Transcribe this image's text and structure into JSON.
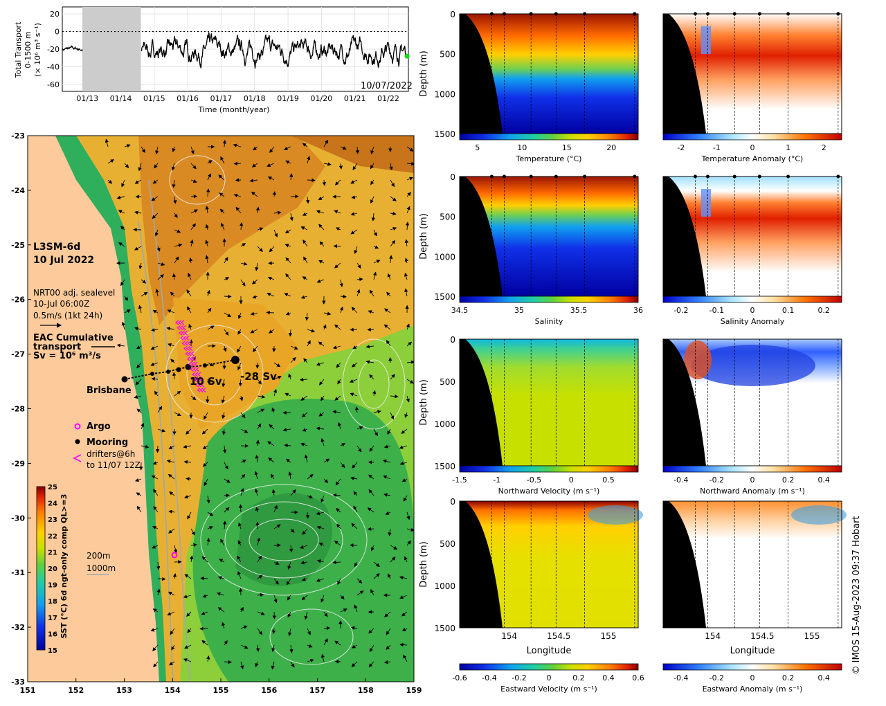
{
  "copyright": "© IMOS 15-Aug-2023 09:37 Hobart",
  "chart_data": [
    {
      "id": "transport",
      "type": "line",
      "ylabel_lines": [
        "Total Transport",
        "0-1500 m",
        "(× 10⁶ m³ s⁻¹)"
      ],
      "xlabel": "Time (month/year)",
      "date_label": "10/07/2022",
      "x_ticks": [
        "01/13",
        "01/14",
        "01/15",
        "01/16",
        "01/17",
        "01/18",
        "01/19",
        "01/20",
        "01/21",
        "01/22"
      ],
      "y_ticks": [
        "20",
        "0",
        "-20",
        "-40",
        "-60"
      ],
      "ylim": [
        -68,
        28
      ],
      "xlim": [
        2012.25,
        2022.6
      ],
      "gap": [
        2012.85,
        2014.6
      ],
      "zero_line": "dotted",
      "series": [
        {
          "segment": 1,
          "x_start": 2012.25,
          "x_end": 2012.85,
          "mean": -20,
          "amp": 4
        },
        {
          "segment": 2,
          "x_start": 2014.62,
          "x_end": 2022.52,
          "mean": -22,
          "amp": 18
        }
      ],
      "current_value": -28,
      "marker_color": "#00dd00"
    },
    {
      "id": "sst-map",
      "type": "heatmap",
      "title_lines": [
        "L3SM-6d",
        "10 Jul 2022"
      ],
      "info_lines": [
        "NRT00 adj. sealevel",
        "10-Jul 06:00Z",
        "0.5m/s (1kt 24h)"
      ],
      "transport_legend_lines": [
        "EAC Cumulative",
        "transport",
        "Sv = 10⁶ m³/s"
      ],
      "place_label": "Brisbane",
      "transport_labels": [
        "10 Sv",
        "-28 Sv"
      ],
      "legend": [
        {
          "label": "Argo",
          "symbol": "circle-open",
          "color": "#ff00ff"
        },
        {
          "label": "Mooring",
          "symbol": "dot",
          "color": "#000000"
        },
        {
          "label": "drifters@6h",
          "symbol": "chevron",
          "color": "#ff00ff"
        },
        {
          "label": "to 11/07 12Z",
          "symbol": "none",
          "color": "#000000"
        }
      ],
      "contour_legend": [
        "200m",
        "1000m"
      ],
      "xlim": [
        151,
        159
      ],
      "ylim": [
        -33,
        -23
      ],
      "x_ticks": [
        "151",
        "152",
        "153",
        "154",
        "155",
        "156",
        "157",
        "158",
        "159"
      ],
      "y_ticks": [
        "-23",
        "-24",
        "-25",
        "-26",
        "-27",
        "-28",
        "-29",
        "-30",
        "-31",
        "-32",
        "-33"
      ],
      "colorbar_label": "SST (°C) 6d ngt-only comp QL>=3",
      "colorbar_ticks": [
        "25",
        "24",
        "23",
        "22",
        "21",
        "20",
        "19",
        "18",
        "17",
        "16",
        "15"
      ],
      "colorbar_range": [
        15,
        25
      ]
    },
    {
      "id": "sections",
      "type": "heatmap",
      "ylabel": "Depth (m)",
      "depth_ticks": [
        "0",
        "500",
        "1000",
        "1500"
      ],
      "xlabel": "Longitude",
      "lon_ticks": [
        "154",
        "154.5",
        "155"
      ],
      "lon_range": [
        153.5,
        155.3
      ],
      "panels": [
        {
          "name": "Temperature",
          "label": "Temperature (°C)",
          "ticks": [
            "5",
            "10",
            "15",
            "20"
          ],
          "range": [
            3,
            23
          ],
          "scheme": "jet",
          "field": "temperature"
        },
        {
          "name": "Temperature Anomaly",
          "label": "Temperature Anomaly (°C)",
          "ticks": [
            "-2",
            "-1",
            "0",
            "1",
            "2"
          ],
          "range": [
            -2.5,
            2.5
          ],
          "scheme": "div",
          "field": "temp_anomaly"
        },
        {
          "name": "Salinity",
          "label": "Salinity",
          "ticks": [
            "34.5",
            "35",
            "35.5",
            "36"
          ],
          "range": [
            34.5,
            36
          ],
          "scheme": "jet",
          "field": "salinity"
        },
        {
          "name": "Salinity Anomaly",
          "label": "Salinity Anomaly",
          "ticks": [
            "-0.2",
            "-0.1",
            "0",
            "0.1",
            "0.2"
          ],
          "range": [
            -0.25,
            0.25
          ],
          "scheme": "div",
          "field": "salt_anomaly"
        },
        {
          "name": "Northward Velocity",
          "label": "Northward Velocity (m s⁻¹)",
          "ticks": [
            "-1.5",
            "-1",
            "-0.5",
            "0",
            "0.5"
          ],
          "range": [
            -1.5,
            0.9
          ],
          "scheme": "jet",
          "field": "north_velocity"
        },
        {
          "name": "Northward Anomaly",
          "label": "Northward Anomaly (m s⁻¹)",
          "ticks": [
            "-0.4",
            "-0.2",
            "0",
            "0.2",
            "0.4"
          ],
          "range": [
            -0.5,
            0.5
          ],
          "scheme": "div",
          "field": "north_anomaly"
        },
        {
          "name": "Eastward Velocity",
          "label": "Eastward Velocity (m s⁻¹)",
          "ticks": [
            "-0.6",
            "-0.4",
            "-0.2",
            "0",
            "0.2",
            "0.4",
            "0.6"
          ],
          "range": [
            -0.6,
            0.6
          ],
          "scheme": "jet",
          "field": "east_velocity"
        },
        {
          "name": "Eastward Anomaly",
          "label": "Eastward Anomaly (m s⁻¹)",
          "ticks": [
            "-0.4",
            "-0.2",
            "0",
            "0.2",
            "0.4"
          ],
          "range": [
            -0.5,
            0.5
          ],
          "scheme": "div",
          "field": "east_anomaly"
        }
      ]
    }
  ]
}
